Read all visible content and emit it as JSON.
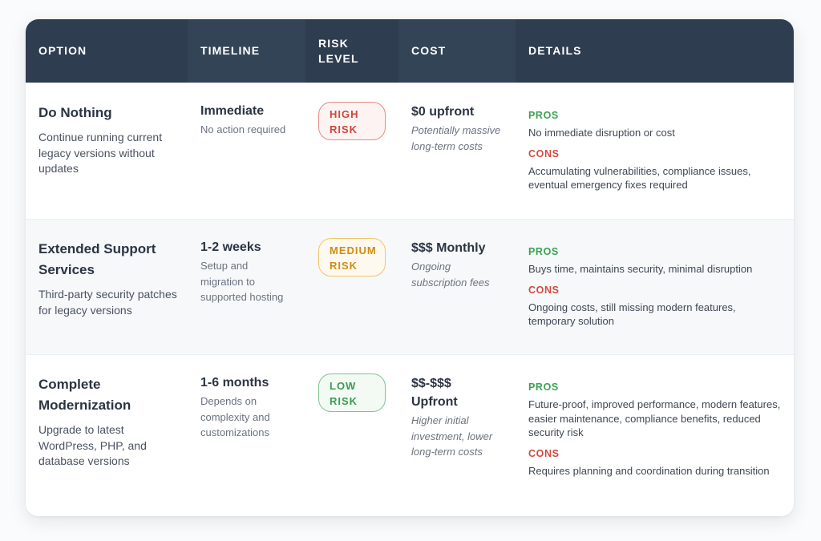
{
  "headers": {
    "option": "OPTION",
    "timeline": "TIMELINE",
    "risk": "RISK LEVEL",
    "cost": "COST",
    "details": "DETAILS"
  },
  "rows": [
    {
      "title": "Do Nothing",
      "description": "Continue running current legacy versions without updates",
      "timeline": "Immediate",
      "timeline_note": "No action required",
      "risk": "HIGH RISK",
      "cost": "$0 upfront",
      "cost_note": "Potentially massive long-term costs",
      "pros_label": "PROS",
      "pros": "No immediate disruption or cost",
      "cons_label": "CONS",
      "cons": "Accumulating vulnerabilities, compliance issues, eventual emergency fixes required"
    },
    {
      "title": "Extended Support Services",
      "description": "Third-party security patches for legacy versions",
      "timeline": "1-2 weeks",
      "timeline_note": "Setup and migration to supported hosting",
      "risk": "MEDIUM RISK",
      "cost": "$$$ Monthly",
      "cost_note": "Ongoing subscription fees",
      "pros_label": "PROS",
      "pros": "Buys time, maintains security, minimal disruption",
      "cons_label": "CONS",
      "cons": "Ongoing costs, still missing modern features, temporary solution"
    },
    {
      "title": "Complete Modernization",
      "description": "Upgrade to latest WordPress, PHP, and database versions",
      "timeline": "1-6 months",
      "timeline_note": "Depends on complexity and customizations",
      "risk": "LOW RISK",
      "cost": "$$-$$$ Upfront",
      "cost_note": "Higher initial investment, lower long-term costs",
      "pros_label": "PROS",
      "pros": "Future-proof, improved performance, modern features, easier maintenance, compliance benefits, reduced security risk",
      "cons_label": "CONS",
      "cons": "Requires planning and coordination during transition"
    }
  ],
  "colors": {
    "header_bg": "#2e3d50",
    "high_risk": "#d0463b",
    "medium_risk": "#cf8c14",
    "low_risk": "#3d9a52",
    "pros": "#3ea153",
    "cons": "#d24a3f"
  }
}
